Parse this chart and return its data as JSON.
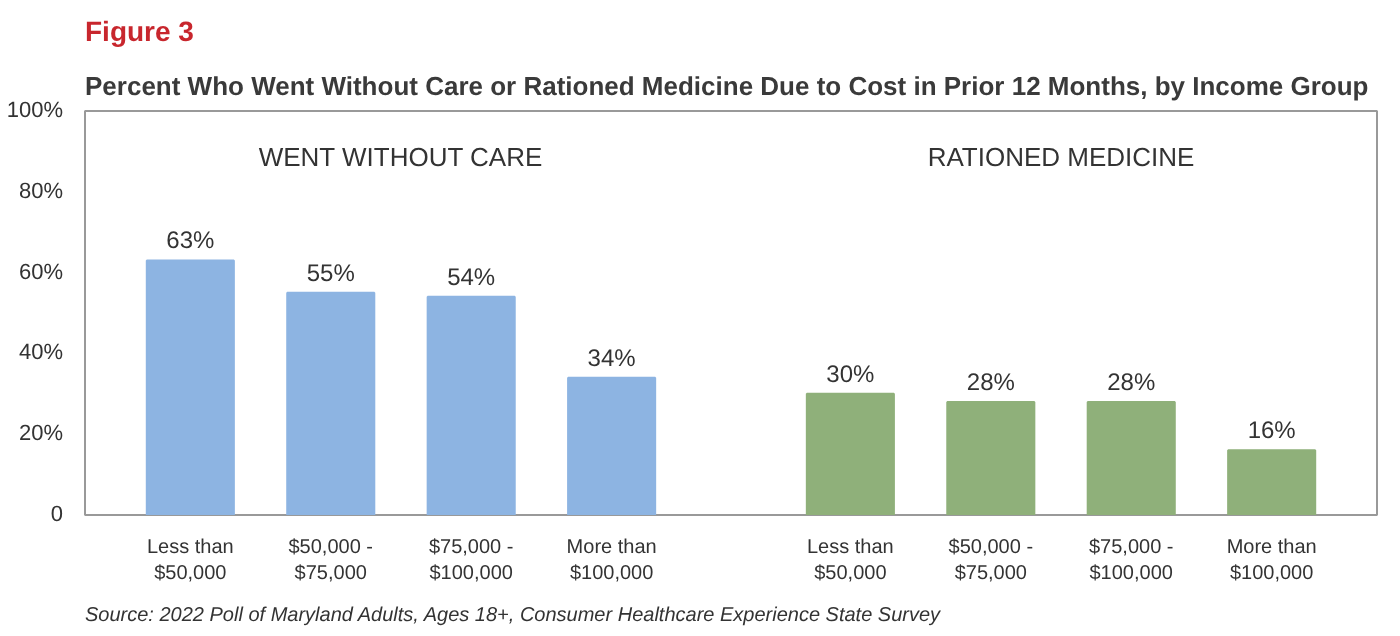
{
  "chart_data": {
    "type": "bar",
    "title": "Figure 3",
    "subtitle": "Percent Who Went Without Care or Rationed Medicine Due to Cost in Prior 12 Months, by Income Group",
    "categories": [
      "Less than\n$50,000",
      "$50,000 -\n$75,000",
      "$75,000 -\n$100,000",
      "More than\n$100,000",
      "Less than\n$50,000",
      "$50,000 -\n$75,000",
      "$75,000 -\n$100,000",
      "More than\n$100,000"
    ],
    "values": [
      63,
      55,
      54,
      34,
      30,
      28,
      28,
      16
    ],
    "colors": [
      "#8db4e2",
      "#8db4e2",
      "#8db4e2",
      "#8db4e2",
      "#8fb07a",
      "#8fb07a",
      "#8fb07a",
      "#8fb07a"
    ],
    "ylim": [
      0,
      100
    ],
    "yticks": [
      0,
      {
        "value": 20,
        "label": "20%"
      },
      {
        "value": 40,
        "label": "40%"
      },
      {
        "value": 60,
        "label": "60%"
      },
      {
        "value": 80,
        "label": "80%"
      },
      {
        "value": 100,
        "label": "100%"
      }
    ],
    "value_labels": [
      "63%",
      "55%",
      "54%",
      "34%",
      "30%",
      "28%",
      "28%",
      "16%"
    ],
    "grid": false,
    "annotations": [
      "WENT WITHOUT CARE",
      "RATIONED MEDICINE",
      "Source: 2022 Poll of Maryland Adults, Ages 18+, Consumer Healthcare Experience State Survey"
    ]
  }
}
